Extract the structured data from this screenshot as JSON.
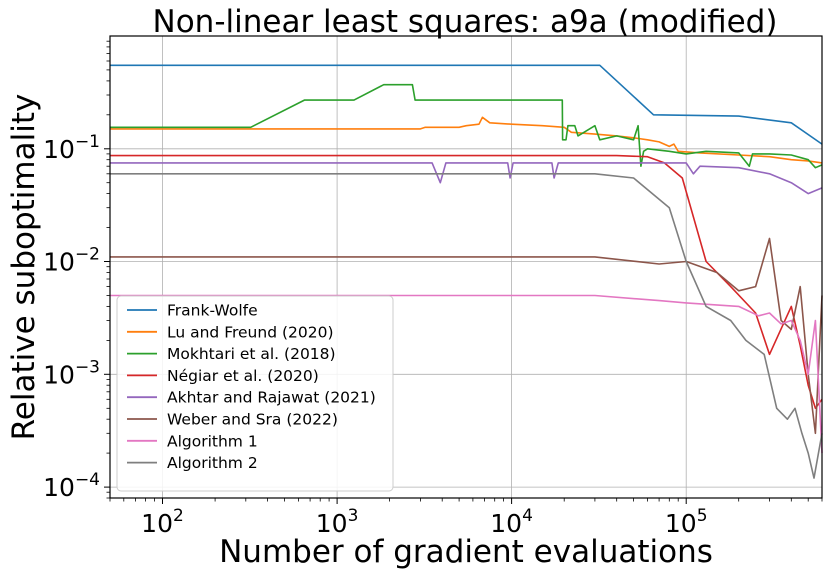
{
  "chart_data": {
    "type": "line",
    "title": "Non-linear least squares: a9a (modified)",
    "xlabel": "Number of gradient evaluations",
    "ylabel": "Relative suboptimality",
    "xscale": "log",
    "yscale": "log",
    "xlim": [
      50,
      600000
    ],
    "ylim": [
      8e-05,
      1.0
    ],
    "grid": true,
    "legend_position": "lower-left",
    "xticks": [
      {
        "value": 100,
        "base": "10",
        "exp": "2"
      },
      {
        "value": 1000,
        "base": "10",
        "exp": "3"
      },
      {
        "value": 10000,
        "base": "10",
        "exp": "4"
      },
      {
        "value": 100000,
        "base": "10",
        "exp": "5"
      }
    ],
    "yticks": [
      {
        "value": 0.1,
        "base": "10",
        "exp": "−1"
      },
      {
        "value": 0.01,
        "base": "10",
        "exp": "−2"
      },
      {
        "value": 0.001,
        "base": "10",
        "exp": "−3"
      },
      {
        "value": 0.0001,
        "base": "10",
        "exp": "−4"
      }
    ],
    "series": [
      {
        "name": "Frank-Wolfe",
        "color": "#1f77b4",
        "points": [
          [
            50,
            0.55
          ],
          [
            32000,
            0.55
          ],
          [
            65000,
            0.2
          ],
          [
            200000,
            0.195
          ],
          [
            400000,
            0.17
          ],
          [
            600000,
            0.11
          ]
        ]
      },
      {
        "name": "Lu and Freund (2020)",
        "color": "#ff7f0e",
        "points": [
          [
            50,
            0.15
          ],
          [
            3000,
            0.15
          ],
          [
            3200,
            0.155
          ],
          [
            5000,
            0.155
          ],
          [
            5500,
            0.16
          ],
          [
            6500,
            0.165
          ],
          [
            6800,
            0.19
          ],
          [
            7500,
            0.17
          ],
          [
            10000,
            0.165
          ],
          [
            15000,
            0.16
          ],
          [
            20000,
            0.155
          ],
          [
            22000,
            0.14
          ],
          [
            30000,
            0.135
          ],
          [
            40000,
            0.13
          ],
          [
            50000,
            0.125
          ],
          [
            60000,
            0.12
          ],
          [
            70000,
            0.115
          ],
          [
            80000,
            0.105
          ],
          [
            85000,
            0.11
          ],
          [
            90000,
            0.095
          ],
          [
            120000,
            0.092
          ],
          [
            200000,
            0.088
          ],
          [
            300000,
            0.085
          ],
          [
            400000,
            0.08
          ],
          [
            500000,
            0.078
          ],
          [
            600000,
            0.075
          ]
        ]
      },
      {
        "name": "Mokhtari et al. (2018)",
        "color": "#2ca02c",
        "points": [
          [
            50,
            0.155
          ],
          [
            320,
            0.155
          ],
          [
            650,
            0.27
          ],
          [
            1250,
            0.27
          ],
          [
            1850,
            0.37
          ],
          [
            2700,
            0.37
          ],
          [
            2800,
            0.27
          ],
          [
            19500,
            0.27
          ],
          [
            19600,
            0.12
          ],
          [
            20500,
            0.12
          ],
          [
            21000,
            0.16
          ],
          [
            23000,
            0.16
          ],
          [
            24000,
            0.13
          ],
          [
            30000,
            0.16
          ],
          [
            32000,
            0.12
          ],
          [
            40000,
            0.13
          ],
          [
            50000,
            0.12
          ],
          [
            53000,
            0.16
          ],
          [
            55000,
            0.07
          ],
          [
            57000,
            0.095
          ],
          [
            60000,
            0.1
          ],
          [
            80000,
            0.095
          ],
          [
            100000,
            0.09
          ],
          [
            130000,
            0.095
          ],
          [
            200000,
            0.092
          ],
          [
            230000,
            0.07
          ],
          [
            240000,
            0.09
          ],
          [
            300000,
            0.09
          ],
          [
            400000,
            0.088
          ],
          [
            500000,
            0.08
          ],
          [
            550000,
            0.068
          ],
          [
            600000,
            0.072
          ]
        ]
      },
      {
        "name": "Négiar et al. (2020)",
        "color": "#d62728",
        "points": [
          [
            50,
            0.087
          ],
          [
            40000,
            0.087
          ],
          [
            60000,
            0.085
          ],
          [
            75000,
            0.075
          ],
          [
            95000,
            0.055
          ],
          [
            130000,
            0.01
          ],
          [
            180000,
            0.006
          ],
          [
            250000,
            0.0035
          ],
          [
            300000,
            0.0015
          ],
          [
            400000,
            0.004
          ],
          [
            450000,
            0.0018
          ],
          [
            500000,
            0.0008
          ],
          [
            550000,
            0.0005
          ],
          [
            600000,
            0.0006
          ]
        ]
      },
      {
        "name": "Akhtar and Rajawat (2021)",
        "color": "#9467bd",
        "points": [
          [
            50,
            0.075
          ],
          [
            3500,
            0.075
          ],
          [
            3900,
            0.05
          ],
          [
            4200,
            0.075
          ],
          [
            9500,
            0.075
          ],
          [
            9800,
            0.055
          ],
          [
            10200,
            0.075
          ],
          [
            17000,
            0.075
          ],
          [
            17500,
            0.055
          ],
          [
            18500,
            0.075
          ],
          [
            100000,
            0.075
          ],
          [
            110000,
            0.06
          ],
          [
            120000,
            0.07
          ],
          [
            200000,
            0.068
          ],
          [
            300000,
            0.06
          ],
          [
            400000,
            0.05
          ],
          [
            500000,
            0.04
          ],
          [
            600000,
            0.045
          ]
        ]
      },
      {
        "name": "Weber and Sra (2022)",
        "color": "#8c564b",
        "points": [
          [
            50,
            0.011
          ],
          [
            30000,
            0.011
          ],
          [
            70000,
            0.0095
          ],
          [
            100000,
            0.01
          ],
          [
            150000,
            0.008
          ],
          [
            200000,
            0.0055
          ],
          [
            250000,
            0.006
          ],
          [
            300000,
            0.016
          ],
          [
            350000,
            0.003
          ],
          [
            400000,
            0.0025
          ],
          [
            450000,
            0.006
          ],
          [
            500000,
            0.001
          ],
          [
            550000,
            0.0003
          ],
          [
            600000,
            0.005
          ]
        ]
      },
      {
        "name": "Algorithm 1",
        "color": "#e377c2",
        "points": [
          [
            50,
            0.005
          ],
          [
            30000,
            0.005
          ],
          [
            70000,
            0.0045
          ],
          [
            100000,
            0.0043
          ],
          [
            200000,
            0.004
          ],
          [
            260000,
            0.0033
          ],
          [
            300000,
            0.0035
          ],
          [
            350000,
            0.0028
          ],
          [
            400000,
            0.003
          ],
          [
            450000,
            0.002
          ],
          [
            500000,
            0.001
          ],
          [
            550000,
            0.003
          ],
          [
            600000,
            0.0002
          ]
        ]
      },
      {
        "name": "Algorithm 2",
        "color": "#7f7f7f",
        "points": [
          [
            50,
            0.06
          ],
          [
            30000,
            0.06
          ],
          [
            50000,
            0.055
          ],
          [
            80000,
            0.03
          ],
          [
            100000,
            0.01
          ],
          [
            130000,
            0.004
          ],
          [
            180000,
            0.003
          ],
          [
            220000,
            0.002
          ],
          [
            280000,
            0.0015
          ],
          [
            330000,
            0.0005
          ],
          [
            380000,
            0.0004
          ],
          [
            420000,
            0.0005
          ],
          [
            460000,
            0.0003
          ],
          [
            500000,
            0.0002
          ],
          [
            540000,
            0.00012
          ],
          [
            600000,
            0.0003
          ]
        ]
      }
    ]
  }
}
